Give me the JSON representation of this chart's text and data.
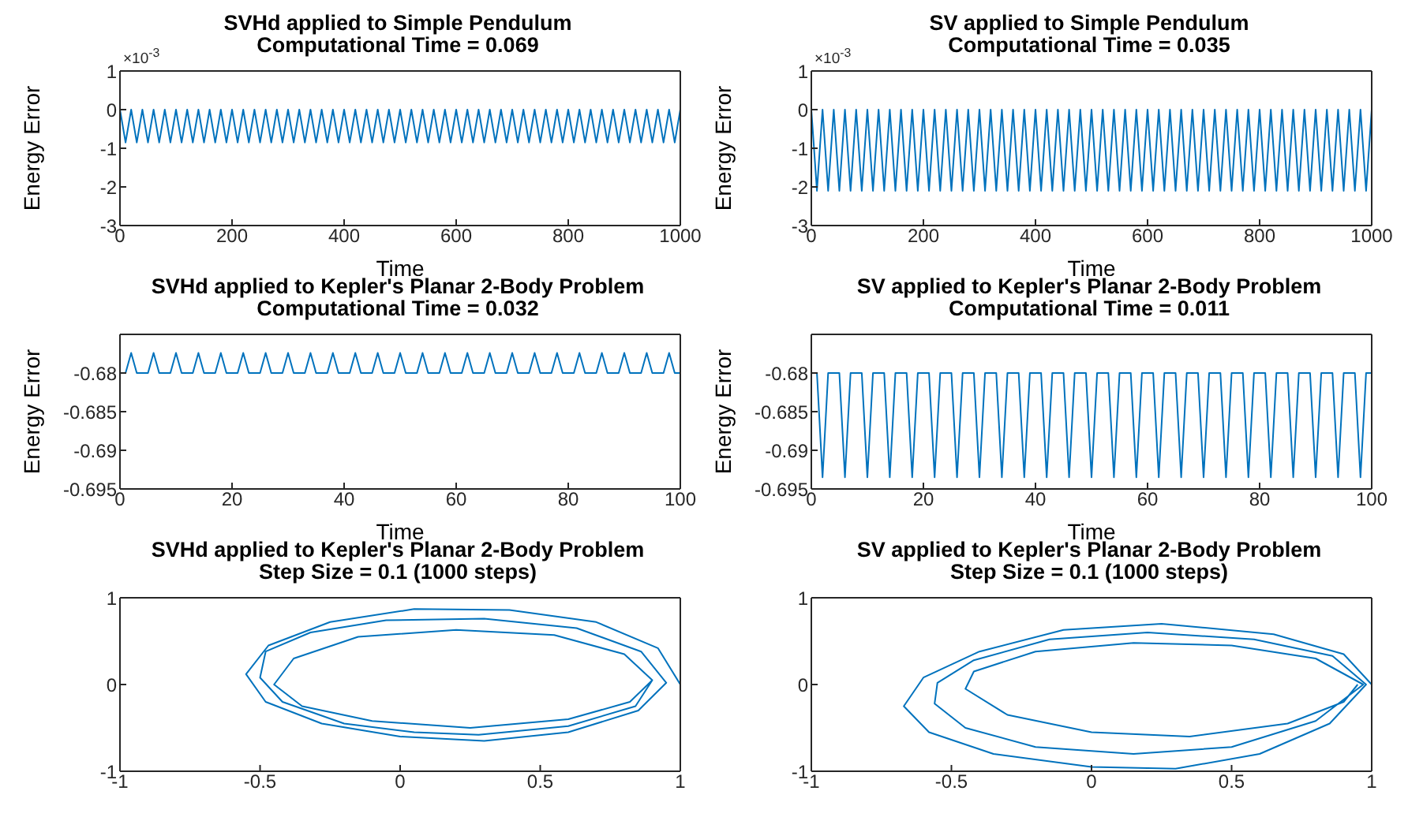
{
  "chart_data": [
    {
      "type": "line",
      "title": "SVHd applied to Simple Pendulum",
      "subtitle": "Computational Time = 0.069",
      "xlabel": "Time",
      "ylabel": "Energy Error",
      "annotations": [
        "×10$^{-3}$"
      ],
      "color": "#0072bd",
      "xlim": [
        0,
        1000
      ],
      "xticks": [
        0,
        200,
        400,
        600,
        800,
        1000
      ],
      "ylim": [
        -3,
        1
      ],
      "yticks": [
        -3,
        -2,
        -1,
        0,
        1
      ],
      "x": [
        0,
        10,
        20,
        30,
        40,
        50,
        60,
        70,
        80,
        90,
        100,
        110,
        120,
        130,
        140,
        150,
        160,
        170,
        180,
        190,
        200,
        210,
        220,
        230,
        240,
        250,
        260,
        270,
        280,
        290,
        300,
        310,
        320,
        330,
        340,
        350,
        360,
        370,
        380,
        390,
        400,
        410,
        420,
        430,
        440,
        450,
        460,
        470,
        480,
        490,
        500,
        510,
        520,
        530,
        540,
        550,
        560,
        570,
        580,
        590,
        600,
        610,
        620,
        630,
        640,
        650,
        660,
        670,
        680,
        690,
        700,
        710,
        720,
        730,
        740,
        750,
        760,
        770,
        780,
        790,
        800,
        810,
        820,
        830,
        840,
        850,
        860,
        870,
        880,
        890,
        900,
        910,
        920,
        930,
        940,
        950,
        960,
        970,
        980,
        990,
        1000
      ],
      "values": [
        0,
        -0.85,
        0,
        -0.85,
        0,
        -0.85,
        0,
        -0.85,
        0,
        -0.85,
        0,
        -0.85,
        0,
        -0.85,
        0,
        -0.85,
        0,
        -0.85,
        0,
        -0.85,
        0,
        -0.85,
        0,
        -0.85,
        0,
        -0.85,
        0,
        -0.85,
        0,
        -0.85,
        0,
        -0.85,
        0,
        -0.85,
        0,
        -0.85,
        0,
        -0.85,
        0,
        -0.85,
        0,
        -0.85,
        0,
        -0.85,
        0,
        -0.85,
        0,
        -0.85,
        0,
        -0.85,
        0,
        -0.85,
        0,
        -0.85,
        0,
        -0.85,
        0,
        -0.85,
        0,
        -0.85,
        0,
        -0.85,
        0,
        -0.85,
        0,
        -0.85,
        0,
        -0.85,
        0,
        -0.85,
        0,
        -0.85,
        0,
        -0.85,
        0,
        -0.85,
        0,
        -0.85,
        0,
        -0.85,
        0,
        -0.85,
        0,
        -0.85,
        0,
        -0.85,
        0,
        -0.85,
        0,
        -0.85,
        0,
        -0.85,
        0,
        -0.85,
        0,
        -0.85,
        0,
        -0.85,
        0,
        -0.85,
        0
      ]
    },
    {
      "type": "line",
      "title": "SV applied to Simple Pendulum",
      "subtitle": "Computational Time = 0.035",
      "xlabel": "Time",
      "ylabel": "Energy Error",
      "annotations": [
        "×10$^{-3}$"
      ],
      "color": "#0072bd",
      "xlim": [
        0,
        1000
      ],
      "xticks": [
        0,
        200,
        400,
        600,
        800,
        1000
      ],
      "ylim": [
        -3,
        1
      ],
      "yticks": [
        -3,
        -2,
        -1,
        0,
        1
      ],
      "x": [
        0,
        10,
        20,
        30,
        40,
        50,
        60,
        70,
        80,
        90,
        100,
        110,
        120,
        130,
        140,
        150,
        160,
        170,
        180,
        190,
        200,
        210,
        220,
        230,
        240,
        250,
        260,
        270,
        280,
        290,
        300,
        310,
        320,
        330,
        340,
        350,
        360,
        370,
        380,
        390,
        400,
        410,
        420,
        430,
        440,
        450,
        460,
        470,
        480,
        490,
        500,
        510,
        520,
        530,
        540,
        550,
        560,
        570,
        580,
        590,
        600,
        610,
        620,
        630,
        640,
        650,
        660,
        670,
        680,
        690,
        700,
        710,
        720,
        730,
        740,
        750,
        760,
        770,
        780,
        790,
        800,
        810,
        820,
        830,
        840,
        850,
        860,
        870,
        880,
        890,
        900,
        910,
        920,
        930,
        940,
        950,
        960,
        970,
        980,
        990,
        1000
      ],
      "values": [
        0,
        -2.1,
        0,
        -2.1,
        0,
        -2.1,
        0,
        -2.1,
        0,
        -2.1,
        0,
        -2.1,
        0,
        -2.1,
        0,
        -2.1,
        0,
        -2.1,
        0,
        -2.1,
        0,
        -2.1,
        0,
        -2.1,
        0,
        -2.1,
        0,
        -2.1,
        0,
        -2.1,
        0,
        -2.1,
        0,
        -2.1,
        0,
        -2.1,
        0,
        -2.1,
        0,
        -2.1,
        0,
        -2.1,
        0,
        -2.1,
        0,
        -2.1,
        0,
        -2.1,
        0,
        -2.1,
        0,
        -2.1,
        0,
        -2.1,
        0,
        -2.1,
        0,
        -2.1,
        0,
        -2.1,
        0,
        -2.1,
        0,
        -2.1,
        0,
        -2.1,
        0,
        -2.1,
        0,
        -2.1,
        0,
        -2.1,
        0,
        -2.1,
        0,
        -2.1,
        0,
        -2.1,
        0,
        -2.1,
        0,
        -2.1,
        0,
        -2.1,
        0,
        -2.1,
        0,
        -2.1,
        0,
        -2.1,
        0,
        -2.1,
        0,
        -2.1,
        0,
        -2.1,
        0,
        -2.1,
        0,
        -2.1,
        0
      ]
    },
    {
      "type": "line",
      "title": "SVHd applied to Kepler's Planar 2-Body Problem",
      "subtitle": "Computational Time = 0.032",
      "xlabel": "Time",
      "ylabel": "Energy Error",
      "color": "#0072bd",
      "xlim": [
        0,
        100
      ],
      "xticks": [
        0,
        20,
        40,
        60,
        80,
        100
      ],
      "ylim": [
        -0.695,
        -0.675
      ],
      "yticks": [
        -0.695,
        -0.69,
        -0.685,
        -0.68
      ],
      "x": [
        0,
        1,
        2,
        3,
        4,
        5,
        6,
        7,
        8,
        9,
        10,
        11,
        12,
        13,
        14,
        15,
        16,
        17,
        18,
        19,
        20,
        21,
        22,
        23,
        24,
        25,
        26,
        27,
        28,
        29,
        30,
        31,
        32,
        33,
        34,
        35,
        36,
        37,
        38,
        39,
        40,
        41,
        42,
        43,
        44,
        45,
        46,
        47,
        48,
        49,
        50,
        51,
        52,
        53,
        54,
        55,
        56,
        57,
        58,
        59,
        60,
        61,
        62,
        63,
        64,
        65,
        66,
        67,
        68,
        69,
        70,
        71,
        72,
        73,
        74,
        75,
        76,
        77,
        78,
        79,
        80,
        81,
        82,
        83,
        84,
        85,
        86,
        87,
        88,
        89,
        90,
        91,
        92,
        93,
        94,
        95,
        96,
        97,
        98,
        99,
        100
      ],
      "values": [
        -0.68,
        -0.68,
        -0.6774,
        -0.68,
        -0.68,
        -0.68,
        -0.6774,
        -0.68,
        -0.68,
        -0.68,
        -0.6774,
        -0.68,
        -0.68,
        -0.68,
        -0.6774,
        -0.68,
        -0.68,
        -0.68,
        -0.6774,
        -0.68,
        -0.68,
        -0.68,
        -0.6774,
        -0.68,
        -0.68,
        -0.68,
        -0.6774,
        -0.68,
        -0.68,
        -0.68,
        -0.6774,
        -0.68,
        -0.68,
        -0.68,
        -0.6774,
        -0.68,
        -0.68,
        -0.68,
        -0.6774,
        -0.68,
        -0.68,
        -0.68,
        -0.6774,
        -0.68,
        -0.68,
        -0.68,
        -0.6774,
        -0.68,
        -0.68,
        -0.68,
        -0.6774,
        -0.68,
        -0.68,
        -0.68,
        -0.6774,
        -0.68,
        -0.68,
        -0.68,
        -0.6774,
        -0.68,
        -0.68,
        -0.68,
        -0.6774,
        -0.68,
        -0.68,
        -0.68,
        -0.6774,
        -0.68,
        -0.68,
        -0.68,
        -0.6774,
        -0.68,
        -0.68,
        -0.68,
        -0.6774,
        -0.68,
        -0.68,
        -0.68,
        -0.6774,
        -0.68,
        -0.68,
        -0.68,
        -0.6774,
        -0.68,
        -0.68,
        -0.68,
        -0.6774,
        -0.68,
        -0.68,
        -0.68,
        -0.6774,
        -0.68,
        -0.68,
        -0.68,
        -0.6774,
        -0.68,
        -0.68,
        -0.68,
        -0.6774,
        -0.68,
        -0.68
      ]
    },
    {
      "type": "line",
      "title": "SV applied to Kepler's Planar 2-Body Problem",
      "subtitle": "Computational Time = 0.011",
      "xlabel": "Time",
      "ylabel": "Energy Error",
      "color": "#0072bd",
      "xlim": [
        0,
        100
      ],
      "xticks": [
        0,
        20,
        40,
        60,
        80,
        100
      ],
      "ylim": [
        -0.695,
        -0.675
      ],
      "yticks": [
        -0.695,
        -0.69,
        -0.685,
        -0.68
      ],
      "x": [
        0,
        1,
        2,
        3,
        4,
        5,
        6,
        7,
        8,
        9,
        10,
        11,
        12,
        13,
        14,
        15,
        16,
        17,
        18,
        19,
        20,
        21,
        22,
        23,
        24,
        25,
        26,
        27,
        28,
        29,
        30,
        31,
        32,
        33,
        34,
        35,
        36,
        37,
        38,
        39,
        40,
        41,
        42,
        43,
        44,
        45,
        46,
        47,
        48,
        49,
        50,
        51,
        52,
        53,
        54,
        55,
        56,
        57,
        58,
        59,
        60,
        61,
        62,
        63,
        64,
        65,
        66,
        67,
        68,
        69,
        70,
        71,
        72,
        73,
        74,
        75,
        76,
        77,
        78,
        79,
        80,
        81,
        82,
        83,
        84,
        85,
        86,
        87,
        88,
        89,
        90,
        91,
        92,
        93,
        94,
        95,
        96,
        97,
        98,
        99,
        100
      ],
      "values": [
        -0.68,
        -0.68,
        -0.6935,
        -0.68,
        -0.68,
        -0.68,
        -0.6935,
        -0.68,
        -0.68,
        -0.68,
        -0.6935,
        -0.68,
        -0.68,
        -0.68,
        -0.6935,
        -0.68,
        -0.68,
        -0.68,
        -0.6935,
        -0.68,
        -0.68,
        -0.68,
        -0.6935,
        -0.68,
        -0.68,
        -0.68,
        -0.6935,
        -0.68,
        -0.68,
        -0.68,
        -0.6935,
        -0.68,
        -0.68,
        -0.68,
        -0.6935,
        -0.68,
        -0.68,
        -0.68,
        -0.6935,
        -0.68,
        -0.68,
        -0.68,
        -0.6935,
        -0.68,
        -0.68,
        -0.68,
        -0.6935,
        -0.68,
        -0.68,
        -0.68,
        -0.6935,
        -0.68,
        -0.68,
        -0.68,
        -0.6935,
        -0.68,
        -0.68,
        -0.68,
        -0.6935,
        -0.68,
        -0.68,
        -0.68,
        -0.6935,
        -0.68,
        -0.68,
        -0.68,
        -0.6935,
        -0.68,
        -0.68,
        -0.68,
        -0.6935,
        -0.68,
        -0.68,
        -0.68,
        -0.6935,
        -0.68,
        -0.68,
        -0.68,
        -0.6935,
        -0.68,
        -0.68,
        -0.68,
        -0.6935,
        -0.68,
        -0.68,
        -0.68,
        -0.6935,
        -0.68,
        -0.68,
        -0.68,
        -0.6935,
        -0.68,
        -0.68,
        -0.68,
        -0.6935,
        -0.68,
        -0.68,
        -0.68,
        -0.6935,
        -0.68,
        -0.68
      ]
    },
    {
      "type": "line",
      "title": "SVHd applied to Kepler's Planar 2-Body Problem",
      "subtitle": "Step Size = 0.1 (1000 steps)",
      "color": "#0072bd",
      "xlim": [
        -1,
        1
      ],
      "xticks": [
        -1,
        -0.5,
        0,
        0.5,
        1
      ],
      "ylim": [
        -1,
        1
      ],
      "yticks": [
        -1,
        0,
        1
      ],
      "x": [
        1.0,
        0.92,
        0.7,
        0.39,
        0.05,
        -0.25,
        -0.47,
        -0.55,
        -0.48,
        -0.28,
        0.0,
        0.3,
        0.6,
        0.85,
        0.95,
        0.86,
        0.63,
        0.3,
        -0.05,
        -0.32,
        -0.48,
        -0.5,
        -0.42,
        -0.2,
        0.05,
        0.28,
        0.6,
        0.84,
        0.9,
        0.8,
        0.55,
        0.2,
        -0.15,
        -0.38,
        -0.45,
        -0.35,
        -0.1,
        0.25,
        0.6,
        0.82,
        0.9
      ],
      "values": [
        0.0,
        0.42,
        0.72,
        0.86,
        0.87,
        0.72,
        0.45,
        0.12,
        -0.2,
        -0.45,
        -0.6,
        -0.65,
        -0.55,
        -0.3,
        0.02,
        0.38,
        0.65,
        0.76,
        0.74,
        0.6,
        0.38,
        0.08,
        -0.2,
        -0.45,
        -0.55,
        -0.58,
        -0.48,
        -0.25,
        0.05,
        0.35,
        0.57,
        0.63,
        0.55,
        0.3,
        0.0,
        -0.25,
        -0.42,
        -0.5,
        -0.4,
        -0.2,
        0.05
      ]
    },
    {
      "type": "line",
      "title": "SV applied to Kepler's Planar 2-Body Problem",
      "subtitle": "Step Size = 0.1 (1000 steps)",
      "color": "#0072bd",
      "xlim": [
        -1,
        1
      ],
      "xticks": [
        -1,
        -0.5,
        0,
        0.5,
        1
      ],
      "ylim": [
        -1,
        1
      ],
      "yticks": [
        -1,
        0,
        1
      ],
      "x": [
        1.0,
        0.9,
        0.65,
        0.25,
        -0.1,
        -0.4,
        -0.6,
        -0.67,
        -0.58,
        -0.35,
        0.0,
        0.3,
        0.6,
        0.85,
        0.98,
        0.86,
        0.58,
        0.2,
        -0.15,
        -0.42,
        -0.55,
        -0.56,
        -0.45,
        -0.2,
        0.15,
        0.5,
        0.8,
        0.97,
        0.8,
        0.5,
        0.15,
        -0.2,
        -0.42,
        -0.45,
        -0.3,
        0.0,
        0.35,
        0.7,
        0.9,
        0.95
      ],
      "values": [
        0.0,
        0.35,
        0.58,
        0.7,
        0.63,
        0.38,
        0.08,
        -0.25,
        -0.55,
        -0.8,
        -0.95,
        -0.97,
        -0.8,
        -0.45,
        0.0,
        0.33,
        0.52,
        0.6,
        0.52,
        0.28,
        0.02,
        -0.22,
        -0.5,
        -0.72,
        -0.8,
        -0.72,
        -0.42,
        0.0,
        0.3,
        0.45,
        0.48,
        0.38,
        0.15,
        -0.05,
        -0.35,
        -0.55,
        -0.6,
        -0.45,
        -0.2,
        0.0
      ]
    }
  ]
}
